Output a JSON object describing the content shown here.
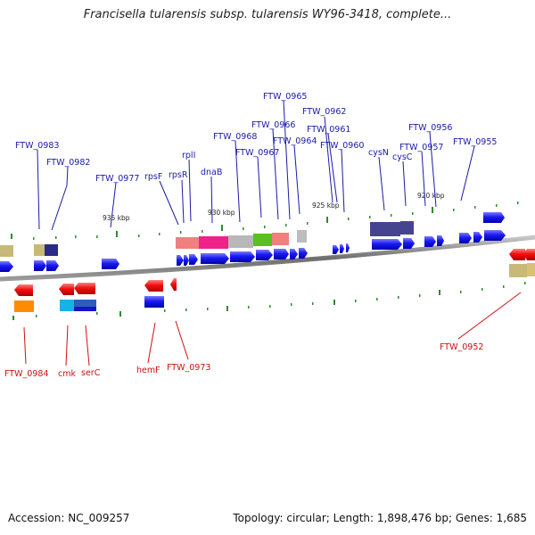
{
  "title": "Francisella tularensis subsp. tularensis WY96-3418, complete...",
  "footer": {
    "accession": "Accession: NC_009257",
    "stats": "Topology: circular; Length: 1,898,476 bp; Genes: 1,685"
  },
  "ruler_ticks": [
    "935 kbp",
    "930 kbp",
    "925 kbp",
    "920 kbp"
  ],
  "top_labels": [
    "FTW_0965",
    "FTW_0962",
    "FTW_0966",
    "FTW_0961",
    "FTW_0968",
    "FTW_0964",
    "FTW_0960",
    "FTW_0956",
    "FTW_0983",
    "FTW_0967",
    "cysN",
    "FTW_0957",
    "FTW_0955",
    "rplI",
    "cysC",
    "FTW_0982",
    "dnaB",
    "rpsF",
    "rpsR",
    "FTW_0977"
  ],
  "bottom_labels": [
    "FTW_0984",
    "cmk",
    "serC",
    "hemF",
    "FTW_0973",
    "FTW_0952"
  ],
  "colors": {
    "forward": "#1111ee",
    "reverse": "#ee1111",
    "backbone": "#808080",
    "label_top": "#1a1aa8",
    "label_bottom": "#cc1111"
  }
}
